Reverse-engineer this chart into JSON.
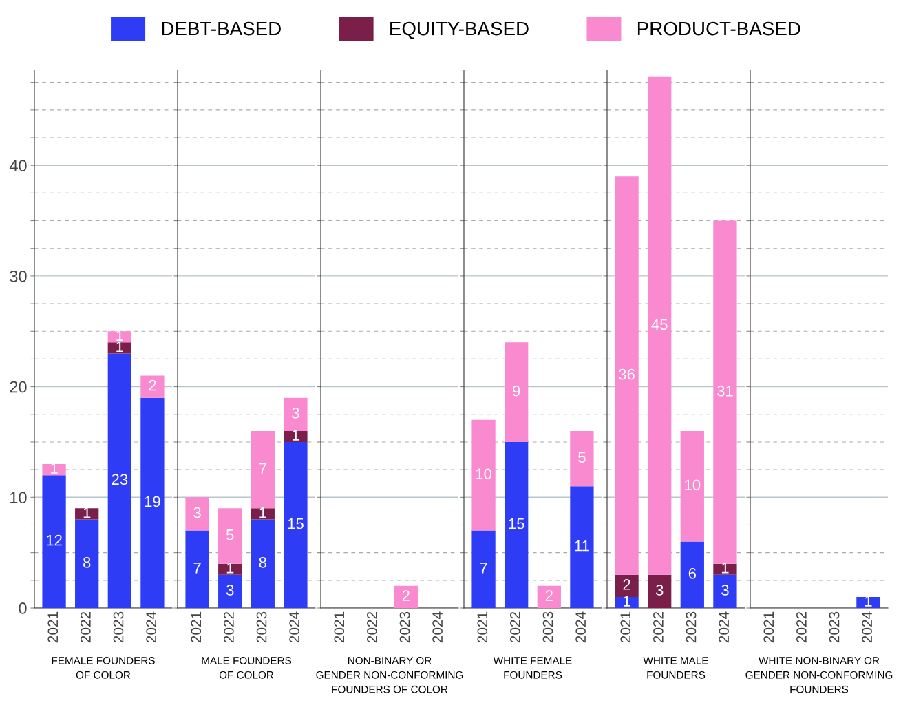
{
  "chart_data": [
    {
      "type": "bar",
      "stacked": true,
      "xlabel": "FEMALE FOUNDERS\nOF COLOR",
      "categories": [
        "2021",
        "2022",
        "2023",
        "2024"
      ],
      "legend": "top",
      "grid": "y",
      "ylim": [
        0,
        48.6
      ],
      "tick_labels": "xy",
      "yticks": [
        0,
        {
          "value": 2.5,
          "label": null
        },
        {
          "value": 5,
          "label": null
        },
        {
          "value": 7.5,
          "label": null
        },
        10,
        {
          "value": 12.5,
          "label": null
        },
        {
          "value": 15,
          "label": null
        },
        {
          "value": 17.5,
          "label": null
        },
        20,
        {
          "value": 22.5,
          "label": null
        },
        {
          "value": 25,
          "label": null
        },
        {
          "value": 27.5,
          "label": null
        },
        30,
        {
          "value": 32.5,
          "label": null
        },
        {
          "value": 35,
          "label": null
        },
        {
          "value": 37.5,
          "label": null
        },
        40,
        {
          "value": 42.5,
          "label": null
        },
        {
          "value": 45,
          "label": null
        },
        {
          "value": 47.5,
          "label": null
        }
      ],
      "series": [
        {
          "name": "DEBT-BASED",
          "color": "#2f3cf5",
          "values": [
            12,
            8,
            23,
            19
          ],
          "value_labels": [
            "12",
            "8",
            "23",
            "19"
          ]
        },
        {
          "name": "EQUITY-BASED",
          "color": "#7a1f4a",
          "values": [
            0,
            1,
            1,
            0
          ],
          "value_labels": [
            null,
            "1",
            "1",
            null
          ]
        },
        {
          "name": "PRODUCT-BASED",
          "color": "#f98ad0",
          "values": [
            1,
            0,
            1,
            2
          ],
          "value_labels": [
            "1",
            null,
            "1",
            "2"
          ]
        }
      ]
    },
    {
      "type": "bar",
      "stacked": true,
      "xlabel": "MALE FOUNDERS\nOF COLOR",
      "categories": [
        "2021",
        "2022",
        "2023",
        "2024"
      ],
      "grid": "y",
      "ylim": [
        0,
        48.6
      ],
      "tick_labels": "x",
      "yticks": [
        0,
        {
          "value": 2.5,
          "label": null
        },
        {
          "value": 5,
          "label": null
        },
        {
          "value": 7.5,
          "label": null
        },
        10,
        {
          "value": 12.5,
          "label": null
        },
        {
          "value": 15,
          "label": null
        },
        {
          "value": 17.5,
          "label": null
        },
        20,
        {
          "value": 22.5,
          "label": null
        },
        {
          "value": 25,
          "label": null
        },
        {
          "value": 27.5,
          "label": null
        },
        30,
        {
          "value": 32.5,
          "label": null
        },
        {
          "value": 35,
          "label": null
        },
        {
          "value": 37.5,
          "label": null
        },
        40,
        {
          "value": 42.5,
          "label": null
        },
        {
          "value": 45,
          "label": null
        },
        {
          "value": 47.5,
          "label": null
        }
      ],
      "series": [
        {
          "color": "#2f3cf5",
          "values": [
            7,
            3,
            8,
            15
          ],
          "value_labels": [
            "7",
            "3",
            "8",
            "15"
          ]
        },
        {
          "color": "#7a1f4a",
          "values": [
            0,
            1,
            1,
            1
          ],
          "value_labels": [
            null,
            "1",
            "1",
            "1"
          ]
        },
        {
          "color": "#f98ad0",
          "values": [
            3,
            5,
            7,
            3
          ],
          "value_labels": [
            "3",
            "5",
            "7",
            "3"
          ]
        }
      ]
    },
    {
      "type": "bar",
      "stacked": true,
      "xlabel": "NON-BINARY OR\nGENDER NON-CONFORMING\nFOUNDERS OF COLOR",
      "categories": [
        "2021",
        "2022",
        "2023",
        "2024"
      ],
      "grid": "y",
      "ylim": [
        0,
        48.6
      ],
      "tick_labels": "x",
      "yticks": [
        0,
        {
          "value": 2.5,
          "label": null
        },
        {
          "value": 5,
          "label": null
        },
        {
          "value": 7.5,
          "label": null
        },
        10,
        {
          "value": 12.5,
          "label": null
        },
        {
          "value": 15,
          "label": null
        },
        {
          "value": 17.5,
          "label": null
        },
        20,
        {
          "value": 22.5,
          "label": null
        },
        {
          "value": 25,
          "label": null
        },
        {
          "value": 27.5,
          "label": null
        },
        30,
        {
          "value": 32.5,
          "label": null
        },
        {
          "value": 35,
          "label": null
        },
        {
          "value": 37.5,
          "label": null
        },
        40,
        {
          "value": 42.5,
          "label": null
        },
        {
          "value": 45,
          "label": null
        },
        {
          "value": 47.5,
          "label": null
        }
      ],
      "series": [
        {
          "color": "#2f3cf5",
          "values": [
            0,
            0,
            0,
            0
          ],
          "value_labels": [
            null,
            null,
            null,
            null
          ]
        },
        {
          "color": "#7a1f4a",
          "values": [
            0,
            0,
            0,
            0
          ],
          "value_labels": [
            null,
            null,
            null,
            null
          ]
        },
        {
          "color": "#f98ad0",
          "values": [
            0,
            0,
            2,
            0
          ],
          "value_labels": [
            null,
            null,
            "2",
            null
          ]
        }
      ]
    },
    {
      "type": "bar",
      "stacked": true,
      "xlabel": "WHITE FEMALE\nFOUNDERS",
      "categories": [
        "2021",
        "2022",
        "2023",
        "2024"
      ],
      "grid": "y",
      "ylim": [
        0,
        48.6
      ],
      "tick_labels": "x",
      "yticks": [
        0,
        {
          "value": 2.5,
          "label": null
        },
        {
          "value": 5,
          "label": null
        },
        {
          "value": 7.5,
          "label": null
        },
        10,
        {
          "value": 12.5,
          "label": null
        },
        {
          "value": 15,
          "label": null
        },
        {
          "value": 17.5,
          "label": null
        },
        20,
        {
          "value": 22.5,
          "label": null
        },
        {
          "value": 25,
          "label": null
        },
        {
          "value": 27.5,
          "label": null
        },
        30,
        {
          "value": 32.5,
          "label": null
        },
        {
          "value": 35,
          "label": null
        },
        {
          "value": 37.5,
          "label": null
        },
        40,
        {
          "value": 42.5,
          "label": null
        },
        {
          "value": 45,
          "label": null
        },
        {
          "value": 47.5,
          "label": null
        }
      ],
      "series": [
        {
          "color": "#2f3cf5",
          "values": [
            7,
            15,
            0,
            11
          ],
          "value_labels": [
            "7",
            "15",
            null,
            "11"
          ]
        },
        {
          "color": "#7a1f4a",
          "values": [
            0,
            0,
            0,
            0
          ],
          "value_labels": [
            null,
            null,
            null,
            null
          ]
        },
        {
          "color": "#f98ad0",
          "values": [
            10,
            9,
            2,
            5
          ],
          "value_labels": [
            "10",
            "9",
            "2",
            "5"
          ]
        }
      ]
    },
    {
      "type": "bar",
      "stacked": true,
      "xlabel": "WHITE MALE\nFOUNDERS",
      "categories": [
        "2021",
        "2022",
        "2023",
        "2024"
      ],
      "grid": "y",
      "ylim": [
        0,
        48.6
      ],
      "tick_labels": "x",
      "yticks": [
        0,
        {
          "value": 2.5,
          "label": null
        },
        {
          "value": 5,
          "label": null
        },
        {
          "value": 7.5,
          "label": null
        },
        10,
        {
          "value": 12.5,
          "label": null
        },
        {
          "value": 15,
          "label": null
        },
        {
          "value": 17.5,
          "label": null
        },
        20,
        {
          "value": 22.5,
          "label": null
        },
        {
          "value": 25,
          "label": null
        },
        {
          "value": 27.5,
          "label": null
        },
        30,
        {
          "value": 32.5,
          "label": null
        },
        {
          "value": 35,
          "label": null
        },
        {
          "value": 37.5,
          "label": null
        },
        40,
        {
          "value": 42.5,
          "label": null
        },
        {
          "value": 45,
          "label": null
        },
        {
          "value": 47.5,
          "label": null
        }
      ],
      "series": [
        {
          "color": "#2f3cf5",
          "values": [
            1,
            0,
            6,
            3
          ],
          "value_labels": [
            "1",
            null,
            "6",
            "3"
          ]
        },
        {
          "color": "#7a1f4a",
          "values": [
            2,
            3,
            0,
            1
          ],
          "value_labels": [
            "2",
            "3",
            null,
            "1"
          ]
        },
        {
          "color": "#f98ad0",
          "values": [
            36,
            45,
            10,
            31
          ],
          "value_labels": [
            "36",
            "45",
            "10",
            "31"
          ]
        }
      ]
    },
    {
      "type": "bar",
      "stacked": true,
      "xlabel": "WHITE NON-BINARY OR\nGENDER NON-CONFORMING\nFOUNDERS",
      "categories": [
        "2021",
        "2022",
        "2023",
        "2024"
      ],
      "grid": "y",
      "ylim": [
        0,
        48.6
      ],
      "tick_labels": "x",
      "yticks": [
        0,
        {
          "value": 2.5,
          "label": null
        },
        {
          "value": 5,
          "label": null
        },
        {
          "value": 7.5,
          "label": null
        },
        10,
        {
          "value": 12.5,
          "label": null
        },
        {
          "value": 15,
          "label": null
        },
        {
          "value": 17.5,
          "label": null
        },
        20,
        {
          "value": 22.5,
          "label": null
        },
        {
          "value": 25,
          "label": null
        },
        {
          "value": 27.5,
          "label": null
        },
        30,
        {
          "value": 32.5,
          "label": null
        },
        {
          "value": 35,
          "label": null
        },
        {
          "value": 37.5,
          "label": null
        },
        40,
        {
          "value": 42.5,
          "label": null
        },
        {
          "value": 45,
          "label": null
        },
        {
          "value": 47.5,
          "label": null
        }
      ],
      "series": [
        {
          "color": "#2f3cf5",
          "values": [
            0,
            0,
            0,
            1
          ],
          "value_labels": [
            null,
            null,
            null,
            "1"
          ]
        },
        {
          "color": "#7a1f4a",
          "values": [
            0,
            0,
            0,
            0
          ],
          "value_labels": [
            null,
            null,
            null,
            null
          ]
        },
        {
          "color": "#f98ad0",
          "values": [
            0,
            0,
            0,
            0
          ],
          "value_labels": [
            null,
            null,
            null,
            null
          ]
        }
      ]
    }
  ]
}
